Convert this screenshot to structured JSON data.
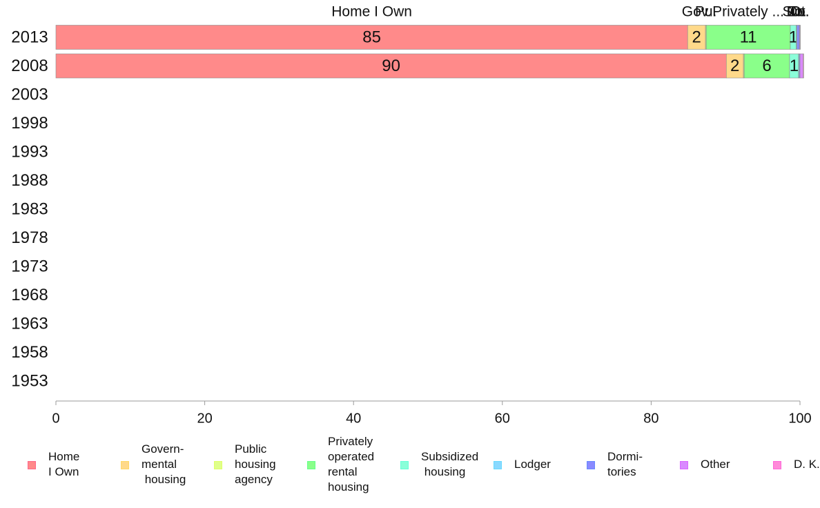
{
  "chart_data": {
    "type": "bar",
    "orientation": "horizontal",
    "stacked": true,
    "categories": [
      "2013",
      "2008",
      "2003",
      "1998",
      "1993",
      "1988",
      "1983",
      "1978",
      "1973",
      "1968",
      "1963",
      "1958",
      "1953"
    ],
    "series": [
      {
        "name": "Home\nI Own",
        "color": "#ff8a8a",
        "values": [
          84.9,
          90.1,
          null,
          null,
          null,
          null,
          null,
          null,
          null,
          null,
          null,
          null,
          null
        ],
        "data_labels": [
          "85",
          "90"
        ],
        "top_label": "Home I Own"
      },
      {
        "name": "Govern-\nmental\n housing",
        "color": "#ffd98a",
        "values": [
          2.4,
          2.3,
          null,
          null,
          null,
          null,
          null,
          null,
          null,
          null,
          null,
          null,
          null
        ],
        "data_labels": [
          "2",
          "2"
        ],
        "top_label": "Gov."
      },
      {
        "name": "Public\nhousing\nagency",
        "color": "#dfff8a",
        "values": [
          0.1,
          0.1,
          null,
          null,
          null,
          null,
          null,
          null,
          null,
          null,
          null,
          null,
          null
        ],
        "data_labels": [
          "",
          ""
        ],
        "top_label": "Pu."
      },
      {
        "name": "Privately\noperated\nrental\nhousing",
        "color": "#8aff8a",
        "values": [
          11.3,
          6.1,
          null,
          null,
          null,
          null,
          null,
          null,
          null,
          null,
          null,
          null,
          null
        ],
        "data_labels": [
          "11",
          "6"
        ],
        "top_label": "Privately ..."
      },
      {
        "name": "Subsidized\n housing",
        "color": "#8affd9",
        "values": [
          0.8,
          1.2,
          null,
          null,
          null,
          null,
          null,
          null,
          null,
          null,
          null,
          null,
          null
        ],
        "data_labels": [
          "1",
          "1"
        ],
        "top_label": "Su."
      },
      {
        "name": "Lodger",
        "color": "#8ad9ff",
        "values": [
          0.1,
          0.1,
          null,
          null,
          null,
          null,
          null,
          null,
          null,
          null,
          null,
          null,
          null
        ],
        "data_labels": [
          "",
          ""
        ],
        "top_label": "Lo."
      },
      {
        "name": "Dormi-\ntories",
        "color": "#8a8aff",
        "values": [
          0.3,
          0.1,
          null,
          null,
          null,
          null,
          null,
          null,
          null,
          null,
          null,
          null,
          null
        ],
        "data_labels": [
          "",
          ""
        ],
        "top_label": "Do."
      },
      {
        "name": "Other",
        "color": "#d98aff",
        "values": [
          0.1,
          0.4,
          null,
          null,
          null,
          null,
          null,
          null,
          null,
          null,
          null,
          null,
          null
        ],
        "data_labels": [
          "",
          ""
        ],
        "top_label": "Ot."
      },
      {
        "name": "D. K.",
        "color": "#ff8ad9",
        "values": [
          0.0,
          0.1,
          null,
          null,
          null,
          null,
          null,
          null,
          null,
          null,
          null,
          null,
          null
        ],
        "data_labels": [
          "",
          ""
        ],
        "top_label": "D.."
      }
    ],
    "xlim": [
      0,
      100
    ],
    "xticks": [
      0,
      20,
      40,
      60,
      80,
      100
    ],
    "grid": false,
    "legend_position": "bottom"
  }
}
